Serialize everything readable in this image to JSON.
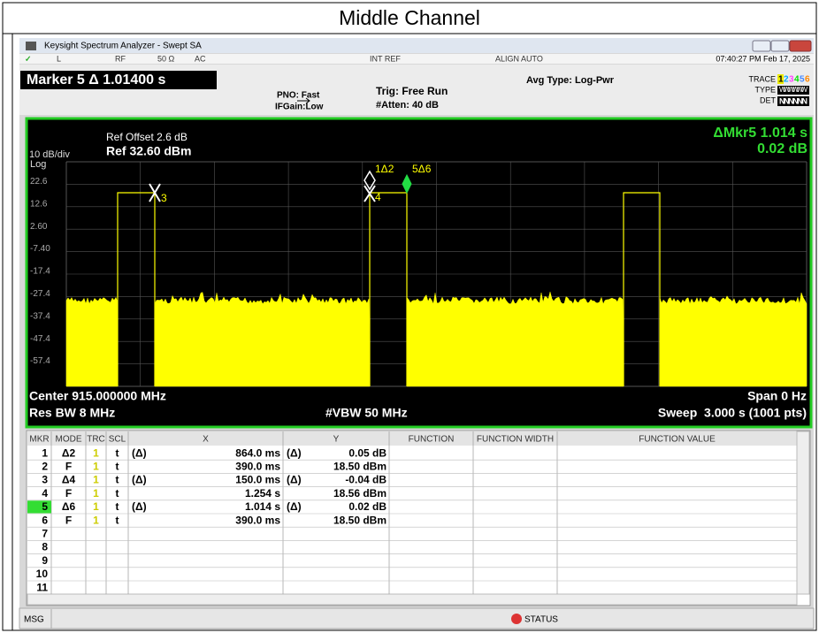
{
  "title": "Middle Channel",
  "window": {
    "title": "Keysight Spectrum Analyzer - Swept SA"
  },
  "status_bar": {
    "input": "L",
    "rf": "RF",
    "impedance": "50 Ω",
    "coupling": "AC",
    "ref": "INT REF",
    "align": "ALIGN AUTO",
    "datetime": "07:40:27 PM Feb 17, 2025"
  },
  "settings": {
    "marker": "Marker 5 Δ 1.01400 s",
    "pno": "PNO: Fast",
    "ifgain": "IFGain:Low",
    "trig": "Trig: Free Run",
    "atten": "#Atten: 40 dB",
    "avg": "Avg Type: Log-Pwr",
    "trace_label": "TRACE",
    "trace": [
      "1",
      "2",
      "3",
      "4",
      "5",
      "6"
    ],
    "type_label": "TYPE",
    "type": "WWWWWW",
    "det_label": "DET",
    "det": "NNNNNN"
  },
  "plot": {
    "ref_offset": "Ref Offset 2.6 dB",
    "ref": "Ref 32.60 dBm",
    "scale": "10 dB/div",
    "scale_type": "Log",
    "marker_readout": [
      "ΔMkr5 1.014 s",
      "0.02 dB"
    ],
    "y_labels": [
      "22.6",
      "12.6",
      "2.60",
      "-7.40",
      "-17.4",
      "-27.4",
      "-37.4",
      "-47.4",
      "-57.4"
    ],
    "marker_labels": [
      "3",
      "4",
      "1Δ2",
      "5Δ6"
    ],
    "center": "Center 915.000000 MHz",
    "span": "Span 0 Hz",
    "rbw": "Res BW 8 MHz",
    "vbw": "#VBW 50 MHz",
    "sweep": "Sweep  3.000 s (1001 pts)"
  },
  "table": {
    "columns": [
      "MKR",
      "MODE",
      "TRC",
      "SCL",
      "X",
      "Y",
      "FUNCTION",
      "FUNCTION WIDTH",
      "FUNCTION VALUE"
    ],
    "rows": [
      {
        "mkr": "1",
        "mode": "Δ2",
        "trc": "1",
        "scl": "t",
        "x_ref": "(Δ)",
        "x": "864.0 ms",
        "y_ref": "(Δ)",
        "y": "0.05 dB"
      },
      {
        "mkr": "2",
        "mode": "F",
        "trc": "1",
        "scl": "t",
        "x": "390.0 ms",
        "y": "18.50 dBm"
      },
      {
        "mkr": "3",
        "mode": "Δ4",
        "trc": "1",
        "scl": "t",
        "x_ref": "(Δ)",
        "x": "150.0 ms",
        "y_ref": "(Δ)",
        "y": "-0.04 dB"
      },
      {
        "mkr": "4",
        "mode": "F",
        "trc": "1",
        "scl": "t",
        "x": "1.254 s",
        "y": "18.56 dBm"
      },
      {
        "mkr": "5",
        "mode": "Δ6",
        "trc": "1",
        "scl": "t",
        "x_ref": "(Δ)",
        "x": "1.014 s",
        "y_ref": "(Δ)",
        "y": "0.02 dB"
      },
      {
        "mkr": "6",
        "mode": "F",
        "trc": "1",
        "scl": "t",
        "x": "390.0 ms",
        "y": "18.50 dBm"
      },
      {
        "mkr": "7"
      },
      {
        "mkr": "8"
      },
      {
        "mkr": "9"
      },
      {
        "mkr": "10"
      },
      {
        "mkr": "11"
      }
    ]
  },
  "footer": {
    "msg": "MSG",
    "status": "STATUS"
  }
}
